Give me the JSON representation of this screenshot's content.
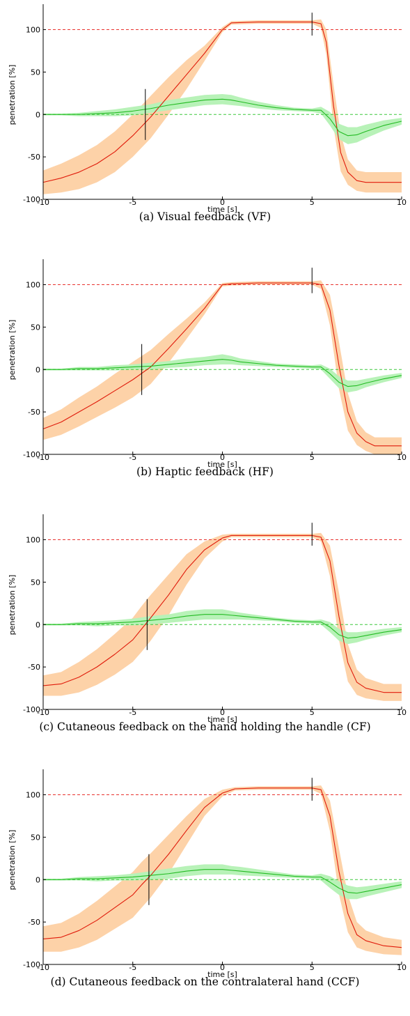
{
  "chart_data": [
    {
      "type": "line",
      "caption": "(a) Visual feedback (VF)",
      "xlabel": "time [s]",
      "ylabel": "penetration [%]",
      "xlim": [
        -10,
        10
      ],
      "ylim": [
        -100,
        130
      ],
      "xticks": [
        -10,
        -5,
        0,
        5,
        10
      ],
      "yticks": [
        -100,
        -50,
        0,
        50,
        100
      ],
      "reference_lines": [
        {
          "y": 100,
          "color": "#e8322e",
          "style": "dashed"
        },
        {
          "y": 0,
          "color": "#3cc83c",
          "style": "dashed"
        }
      ],
      "markers": [
        {
          "x": -4.3,
          "y_from": -30,
          "y_to": 30
        },
        {
          "x": 5.0,
          "y_from": 93,
          "y_to": 120
        }
      ],
      "series": [
        {
          "color": "#e01a0a",
          "band_color": "#fdd2a8",
          "x": [
            -10,
            -9,
            -8,
            -7,
            -6,
            -5,
            -4,
            -3,
            -2,
            -1,
            0,
            0.5,
            2,
            4,
            5,
            5.5,
            5.8,
            6.2,
            6.6,
            7,
            7.5,
            8,
            9,
            10
          ],
          "values": [
            -80,
            -75,
            -68,
            -58,
            -44,
            -25,
            -3,
            22,
            47,
            72,
            100,
            108,
            109,
            109,
            109,
            107,
            85,
            10,
            -45,
            -68,
            -78,
            -80,
            -80,
            -80
          ],
          "band_halfwidth": [
            14,
            17,
            20,
            22,
            24,
            25,
            25,
            22,
            17,
            9,
            3,
            2,
            2,
            2,
            2,
            5,
            15,
            25,
            22,
            15,
            12,
            12,
            12,
            12
          ]
        },
        {
          "color": "#22bb22",
          "band_color": "#b8f2b8",
          "x": [
            -10,
            -9,
            -8,
            -7,
            -6,
            -5,
            -4,
            -3,
            -2,
            -1,
            0,
            0.5,
            1,
            2,
            3,
            4,
            5,
            5.5,
            6,
            6.5,
            7,
            7.5,
            8,
            9,
            10
          ],
          "values": [
            0,
            0,
            0,
            1,
            2,
            4,
            7,
            11,
            14,
            17,
            18,
            17,
            15,
            11,
            8,
            6,
            5,
            5,
            -5,
            -20,
            -25,
            -24,
            -20,
            -13,
            -8
          ],
          "band_halfwidth": [
            1,
            1,
            2,
            3,
            4,
            5,
            5,
            6,
            6,
            6,
            6,
            6,
            5,
            4,
            3,
            2,
            2,
            4,
            8,
            9,
            10,
            9,
            8,
            6,
            4
          ]
        }
      ]
    },
    {
      "type": "line",
      "caption": "(b) Haptic feedback (HF)",
      "xlabel": "time [s]",
      "ylabel": "penetration [%]",
      "xlim": [
        -10,
        10
      ],
      "ylim": [
        -100,
        130
      ],
      "xticks": [
        -10,
        -5,
        0,
        5,
        10
      ],
      "yticks": [
        -100,
        -50,
        0,
        50,
        100
      ],
      "reference_lines": [
        {
          "y": 100,
          "color": "#e8322e",
          "style": "dashed"
        },
        {
          "y": 0,
          "color": "#3cc83c",
          "style": "dashed"
        }
      ],
      "markers": [
        {
          "x": -4.5,
          "y_from": -30,
          "y_to": 30
        },
        {
          "x": 5.0,
          "y_from": 90,
          "y_to": 120
        }
      ],
      "series": [
        {
          "color": "#e01a0a",
          "band_color": "#fdd2a8",
          "x": [
            -10,
            -9,
            -8,
            -7,
            -6,
            -5,
            -4,
            -3,
            -2,
            -1,
            0,
            0.5,
            2,
            4,
            5,
            5.5,
            6,
            6.5,
            7,
            7.5,
            8,
            8.5,
            9,
            10
          ],
          "values": [
            -70,
            -62,
            -50,
            -38,
            -25,
            -12,
            3,
            25,
            48,
            72,
            100,
            101,
            102,
            102,
            102,
            100,
            70,
            5,
            -50,
            -75,
            -85,
            -90,
            -90,
            -90
          ],
          "band_halfwidth": [
            13,
            15,
            17,
            18,
            20,
            21,
            20,
            17,
            12,
            7,
            2,
            2,
            2,
            2,
            2,
            5,
            18,
            28,
            22,
            14,
            11,
            10,
            10,
            10
          ]
        },
        {
          "color": "#22bb22",
          "band_color": "#b8f2b8",
          "x": [
            -10,
            -9,
            -8,
            -7,
            -6,
            -5,
            -4,
            -3,
            -2,
            -1,
            0,
            0.5,
            1,
            2,
            3,
            4,
            5,
            5.5,
            6,
            6.5,
            7,
            7.5,
            8,
            9,
            10
          ],
          "values": [
            0,
            0,
            1,
            1,
            2,
            3,
            4,
            6,
            8,
            10,
            12,
            11,
            9,
            7,
            5,
            4,
            3,
            3,
            -5,
            -15,
            -20,
            -19,
            -16,
            -11,
            -7
          ],
          "band_halfwidth": [
            1,
            1,
            2,
            2,
            3,
            3,
            4,
            4,
            5,
            5,
            6,
            5,
            4,
            3,
            2,
            2,
            2,
            3,
            6,
            7,
            7,
            6,
            5,
            4,
            3
          ]
        }
      ]
    },
    {
      "type": "line",
      "caption": "(c) Cutaneous feedback on the hand holding the handle (CF)",
      "xlabel": "time [s]",
      "ylabel": "penetration [%]",
      "xlim": [
        -10,
        10
      ],
      "ylim": [
        -100,
        130
      ],
      "xticks": [
        -10,
        -5,
        0,
        5,
        10
      ],
      "yticks": [
        -100,
        -50,
        0,
        50,
        100
      ],
      "reference_lines": [
        {
          "y": 100,
          "color": "#e8322e",
          "style": "dashed"
        },
        {
          "y": 0,
          "color": "#3cc83c",
          "style": "dashed"
        }
      ],
      "markers": [
        {
          "x": -4.2,
          "y_from": -30,
          "y_to": 30
        },
        {
          "x": 5.0,
          "y_from": 93,
          "y_to": 120
        }
      ],
      "series": [
        {
          "color": "#e01a0a",
          "band_color": "#fdd2a8",
          "x": [
            -10,
            -9,
            -8,
            -7,
            -6,
            -5,
            -4.5,
            -4,
            -3,
            -2,
            -1,
            0,
            0.5,
            2,
            4,
            5,
            5.5,
            6,
            6.5,
            7,
            7.5,
            8,
            9,
            10
          ],
          "values": [
            -72,
            -70,
            -62,
            -50,
            -35,
            -18,
            -5,
            8,
            35,
            65,
            88,
            102,
            105,
            105,
            105,
            105,
            103,
            75,
            10,
            -45,
            -68,
            -75,
            -80,
            -80
          ],
          "band_halfwidth": [
            12,
            14,
            18,
            21,
            24,
            26,
            27,
            27,
            24,
            18,
            10,
            4,
            2,
            2,
            2,
            2,
            5,
            18,
            28,
            22,
            15,
            12,
            10,
            10
          ]
        },
        {
          "color": "#22bb22",
          "band_color": "#b8f2b8",
          "x": [
            -10,
            -9,
            -8,
            -7,
            -6,
            -5,
            -4,
            -3,
            -2,
            -1,
            0,
            0.5,
            1,
            2,
            3,
            4,
            5,
            5.5,
            6,
            6.5,
            7,
            7.5,
            8,
            9,
            10
          ],
          "values": [
            0,
            0,
            1,
            1,
            2,
            3,
            5,
            7,
            10,
            12,
            12,
            11,
            10,
            8,
            6,
            4,
            3,
            3,
            -3,
            -12,
            -16,
            -15,
            -13,
            -9,
            -6
          ],
          "band_halfwidth": [
            1,
            1,
            2,
            3,
            3,
            4,
            5,
            5,
            6,
            6,
            6,
            5,
            4,
            3,
            2,
            2,
            2,
            3,
            6,
            7,
            7,
            6,
            5,
            4,
            3
          ]
        }
      ]
    },
    {
      "type": "line",
      "caption": "(d) Cutaneous feedback on the contralateral hand (CCF)",
      "xlabel": "time [s]",
      "ylabel": "penetration [%]",
      "xlim": [
        -10,
        10
      ],
      "ylim": [
        -100,
        130
      ],
      "xticks": [
        -10,
        -5,
        0,
        5,
        10
      ],
      "yticks": [
        -100,
        -50,
        0,
        50,
        100
      ],
      "reference_lines": [
        {
          "y": 100,
          "color": "#e8322e",
          "style": "dashed"
        },
        {
          "y": 0,
          "color": "#3cc83c",
          "style": "dashed"
        }
      ],
      "markers": [
        {
          "x": -4.1,
          "y_from": -30,
          "y_to": 30
        },
        {
          "x": 5.0,
          "y_from": 93,
          "y_to": 120
        }
      ],
      "series": [
        {
          "color": "#e01a0a",
          "band_color": "#fdd2a8",
          "x": [
            -10,
            -9,
            -8,
            -7,
            -6,
            -5,
            -4.5,
            -4,
            -3,
            -2,
            -1,
            0,
            0.7,
            2,
            4,
            5,
            5.5,
            6,
            6.5,
            7,
            7.5,
            8,
            9,
            10
          ],
          "values": [
            -70,
            -68,
            -60,
            -48,
            -33,
            -18,
            -6,
            5,
            30,
            58,
            85,
            102,
            107,
            108,
            108,
            108,
            106,
            75,
            10,
            -40,
            -65,
            -72,
            -78,
            -80
          ],
          "band_halfwidth": [
            15,
            17,
            20,
            23,
            25,
            27,
            27,
            26,
            23,
            17,
            10,
            4,
            2,
            2,
            2,
            2,
            5,
            18,
            27,
            22,
            15,
            12,
            10,
            9
          ]
        },
        {
          "color": "#22bb22",
          "band_color": "#b8f2b8",
          "x": [
            -10,
            -9,
            -8,
            -7,
            -6,
            -5,
            -4,
            -3,
            -2,
            -1,
            0,
            0.5,
            1,
            2,
            3,
            4,
            5,
            5.5,
            6,
            6.5,
            7,
            7.5,
            8,
            9,
            10
          ],
          "values": [
            0,
            0,
            1,
            1,
            2,
            3,
            5,
            7,
            10,
            12,
            12,
            11,
            10,
            8,
            6,
            4,
            3,
            3,
            -3,
            -10,
            -15,
            -16,
            -14,
            -10,
            -6
          ],
          "band_halfwidth": [
            1,
            1,
            2,
            3,
            3,
            4,
            5,
            6,
            6,
            6,
            6,
            5,
            5,
            4,
            3,
            2,
            2,
            4,
            7,
            8,
            8,
            7,
            6,
            5,
            4
          ]
        }
      ]
    }
  ]
}
